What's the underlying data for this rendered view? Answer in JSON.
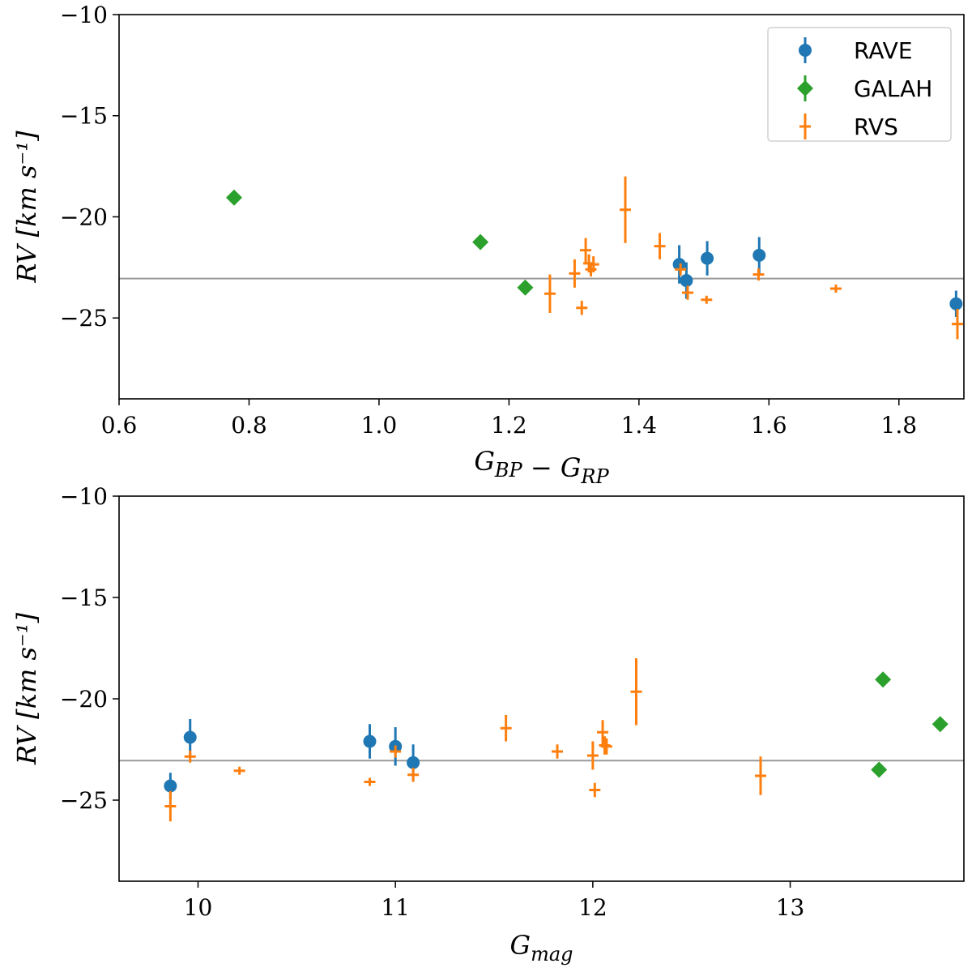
{
  "chart_data": [
    {
      "type": "scatter",
      "xlabel_parts": [
        {
          "base": "G",
          "sub": "BP"
        },
        {
          "op": " − "
        },
        {
          "base": "G",
          "sub": "RP"
        }
      ],
      "ylabel": "RV [km s⁻¹]",
      "xlim": [
        0.6,
        1.9
      ],
      "ylim": [
        -29,
        -10
      ],
      "y_inverted": true,
      "xticks": [
        0.6,
        0.8,
        1.0,
        1.2,
        1.4,
        1.6,
        1.8
      ],
      "xtick_labels": [
        "0.6",
        "0.8",
        "1.0",
        "1.2",
        "1.4",
        "1.6",
        "1.8"
      ],
      "yticks": [
        -10,
        -15,
        -20,
        -25
      ],
      "ytick_labels": [
        "−10",
        "−15",
        "−20",
        "−25"
      ],
      "reference_line": -23.05,
      "legend": {
        "position": "top-right"
      },
      "series": [
        {
          "name": "RAVE",
          "marker": "circle",
          "color": "#1f77b4",
          "points": [
            {
              "x": 1.462,
              "y": -22.35,
              "err": 0.95
            },
            {
              "x": 1.473,
              "y": -23.15,
              "err": 0.9
            },
            {
              "x": 1.505,
              "y": -22.05,
              "err": 0.85
            },
            {
              "x": 1.585,
              "y": -21.9,
              "err": 0.9
            },
            {
              "x": 1.888,
              "y": -24.3,
              "err": 0.65
            }
          ]
        },
        {
          "name": "GALAH",
          "marker": "diamond",
          "color": "#2ca02c",
          "points": [
            {
              "x": 0.777,
              "y": -19.05,
              "err": 0.0
            },
            {
              "x": 1.156,
              "y": -21.25,
              "err": 0.0
            },
            {
              "x": 1.225,
              "y": -23.5,
              "err": 0.0
            }
          ]
        },
        {
          "name": "RVS",
          "marker": "cross",
          "color": "#ff7f0e",
          "points": [
            {
              "x": 1.263,
              "y": -23.8,
              "err": 0.95
            },
            {
              "x": 1.301,
              "y": -22.8,
              "err": 0.7
            },
            {
              "x": 1.312,
              "y": -24.5,
              "err": 0.35
            },
            {
              "x": 1.318,
              "y": -21.65,
              "err": 0.6
            },
            {
              "x": 1.323,
              "y": -22.3,
              "err": 0.45
            },
            {
              "x": 1.326,
              "y": -22.6,
              "err": 0.35
            },
            {
              "x": 1.33,
              "y": -22.35,
              "err": 0.4
            },
            {
              "x": 1.379,
              "y": -19.65,
              "err": 1.65
            },
            {
              "x": 1.432,
              "y": -21.45,
              "err": 0.65
            },
            {
              "x": 1.464,
              "y": -22.6,
              "err": 0.3
            },
            {
              "x": 1.475,
              "y": -23.75,
              "err": 0.35
            },
            {
              "x": 1.504,
              "y": -24.1,
              "err": 0.2
            },
            {
              "x": 1.584,
              "y": -22.85,
              "err": 0.3
            },
            {
              "x": 1.703,
              "y": -23.55,
              "err": 0.2
            },
            {
              "x": 1.89,
              "y": -25.3,
              "err": 0.75
            }
          ]
        }
      ]
    },
    {
      "type": "scatter",
      "xlabel_parts": [
        {
          "base": "G",
          "sub": "mag"
        }
      ],
      "ylabel": "RV [km s⁻¹]",
      "xlim": [
        9.6,
        13.88
      ],
      "ylim": [
        -29,
        -10
      ],
      "y_inverted": true,
      "xticks": [
        10,
        11,
        12,
        13
      ],
      "xtick_labels": [
        "10",
        "11",
        "12",
        "13"
      ],
      "yticks": [
        -10,
        -15,
        -20,
        -25
      ],
      "ytick_labels": [
        "−10",
        "−15",
        "−20",
        "−25"
      ],
      "reference_line": -23.05,
      "series": [
        {
          "name": "RAVE",
          "marker": "circle",
          "color": "#1f77b4",
          "points": [
            {
              "x": 9.86,
              "y": -24.3,
              "err": 0.65
            },
            {
              "x": 9.96,
              "y": -21.9,
              "err": 0.9
            },
            {
              "x": 10.87,
              "y": -22.1,
              "err": 0.85
            },
            {
              "x": 11.0,
              "y": -22.35,
              "err": 0.95
            },
            {
              "x": 11.09,
              "y": -23.15,
              "err": 0.9
            }
          ]
        },
        {
          "name": "GALAH",
          "marker": "diamond",
          "color": "#2ca02c",
          "points": [
            {
              "x": 13.47,
              "y": -19.05,
              "err": 0.0
            },
            {
              "x": 13.45,
              "y": -23.5,
              "err": 0.0
            },
            {
              "x": 13.76,
              "y": -21.25,
              "err": 0.0
            }
          ]
        },
        {
          "name": "RVS",
          "marker": "cross",
          "color": "#ff7f0e",
          "points": [
            {
              "x": 9.86,
              "y": -25.3,
              "err": 0.75
            },
            {
              "x": 9.96,
              "y": -22.85,
              "err": 0.3
            },
            {
              "x": 10.21,
              "y": -23.55,
              "err": 0.2
            },
            {
              "x": 10.87,
              "y": -24.1,
              "err": 0.2
            },
            {
              "x": 11.0,
              "y": -22.6,
              "err": 0.3
            },
            {
              "x": 11.09,
              "y": -23.75,
              "err": 0.35
            },
            {
              "x": 11.56,
              "y": -21.45,
              "err": 0.65
            },
            {
              "x": 11.82,
              "y": -22.6,
              "err": 0.35
            },
            {
              "x": 12.0,
              "y": -22.8,
              "err": 0.7
            },
            {
              "x": 12.01,
              "y": -24.5,
              "err": 0.35
            },
            {
              "x": 12.05,
              "y": -21.65,
              "err": 0.6
            },
            {
              "x": 12.06,
              "y": -22.3,
              "err": 0.45
            },
            {
              "x": 12.07,
              "y": -22.35,
              "err": 0.4
            },
            {
              "x": 12.22,
              "y": -19.65,
              "err": 1.65
            },
            {
              "x": 12.85,
              "y": -23.8,
              "err": 0.95
            }
          ]
        }
      ]
    }
  ]
}
